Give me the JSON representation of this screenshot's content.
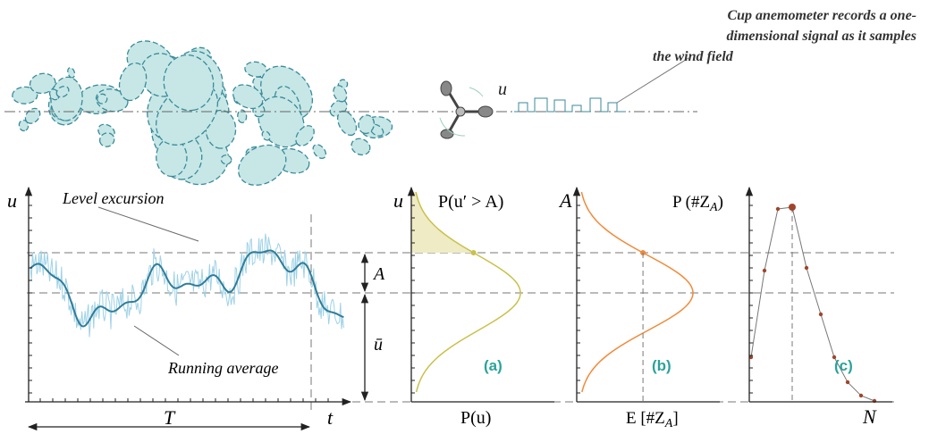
{
  "caption": {
    "lines": [
      "Cup anemometer records a one-",
      "dimensional signal as it samples",
      "the wind field"
    ]
  },
  "anemometer": {
    "signal_label": "u"
  },
  "signal_plot": {
    "y_label": "u",
    "x_label": "t",
    "level_excursion": "Level excursion",
    "running_average": "Running average",
    "period": "T",
    "amplitude": "A",
    "mean": "ū"
  },
  "panel_a": {
    "y_label": "u",
    "shaded_label": "P(u′ > A)",
    "tag": "(a)",
    "x_label": "P(u)"
  },
  "panel_b": {
    "y_label": "A",
    "tag": "(b)",
    "x_label": {
      "text": "E [#Z",
      "sub": "A",
      "end": "]"
    }
  },
  "panel_c": {
    "y_label": {
      "text": "P (#Z",
      "sub": "A",
      "end": ")"
    },
    "tag": "(c)",
    "x_label": "N"
  }
}
